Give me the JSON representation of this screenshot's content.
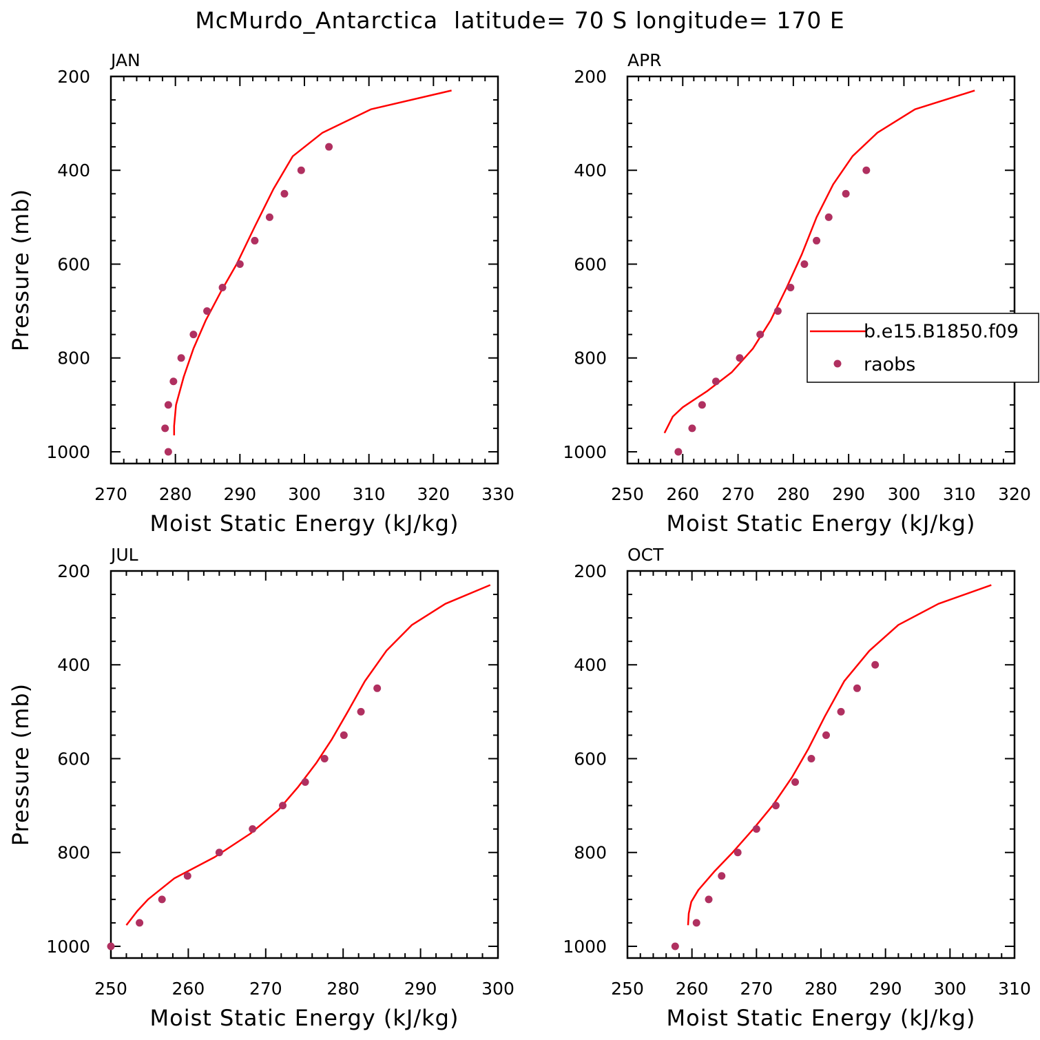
{
  "page": {
    "title": "McMurdo_Antarctica  latitude= 70 S longitude= 170 E"
  },
  "colors": {
    "model": "#ff0000",
    "obs": "#b03060",
    "axis": "#000000"
  },
  "legend": {
    "panel": "APR",
    "placement": "right-middle",
    "entries": [
      {
        "label": "b.e15.B1850.f09",
        "kind": "line"
      },
      {
        "label": "raobs",
        "kind": "marker"
      }
    ]
  },
  "chart_data": [
    {
      "panel": "JAN",
      "type": "line",
      "xlabel": "Moist Static Energy (kJ/kg)",
      "ylabel": "Pressure (mb)",
      "xlim": [
        270,
        330
      ],
      "xticks": [
        270,
        280,
        290,
        300,
        310,
        320,
        330
      ],
      "ylim": [
        1025,
        200
      ],
      "yticks": [
        200,
        400,
        600,
        800,
        1000
      ],
      "y_inverted": true,
      "series": [
        {
          "name": "b.e15.B1850.f09",
          "kind": "line",
          "x": [
            322.8,
            310.3,
            302.8,
            298.2,
            295.2,
            292.3,
            289.5,
            287.0,
            284.7,
            282.8,
            281.3,
            280.1,
            279.8,
            279.8
          ],
          "y": [
            230,
            270,
            320,
            370,
            440,
            520,
            600,
            660,
            720,
            780,
            840,
            900,
            945,
            965
          ]
        },
        {
          "name": "raobs",
          "kind": "scatter",
          "x": [
            303.8,
            299.5,
            296.9,
            294.6,
            292.3,
            290.0,
            287.3,
            284.9,
            282.8,
            280.9,
            279.7,
            278.9,
            278.4,
            278.9
          ],
          "y": [
            350,
            400,
            450,
            500,
            550,
            600,
            650,
            700,
            750,
            800,
            850,
            900,
            950,
            1000
          ]
        }
      ]
    },
    {
      "panel": "APR",
      "type": "line",
      "xlabel": "Moist Static Energy (kJ/kg)",
      "ylabel": "",
      "xlim": [
        250,
        320
      ],
      "xticks": [
        250,
        260,
        270,
        280,
        290,
        300,
        310,
        320
      ],
      "ylim": [
        1025,
        200
      ],
      "yticks": [
        200,
        400,
        600,
        800,
        1000
      ],
      "y_inverted": true,
      "series": [
        {
          "name": "b.e15.B1850.f09",
          "kind": "line",
          "x": [
            312.8,
            302.0,
            295.2,
            290.7,
            287.2,
            284.2,
            281.5,
            278.8,
            275.9,
            272.7,
            268.9,
            264.5,
            260.0,
            258.2,
            256.7
          ],
          "y": [
            230,
            270,
            320,
            370,
            430,
            500,
            580,
            650,
            720,
            780,
            830,
            870,
            905,
            925,
            960
          ]
        },
        {
          "name": "raobs",
          "kind": "scatter",
          "x": [
            293.2,
            289.5,
            286.4,
            284.2,
            282.0,
            279.5,
            277.2,
            274.0,
            270.3,
            266.0,
            263.5,
            261.7,
            259.2
          ],
          "y": [
            400,
            450,
            500,
            550,
            600,
            650,
            700,
            750,
            800,
            850,
            900,
            950,
            1000
          ]
        }
      ]
    },
    {
      "panel": "JUL",
      "type": "line",
      "xlabel": "Moist Static Energy (kJ/kg)",
      "ylabel": "Pressure (mb)",
      "xlim": [
        250,
        300
      ],
      "xticks": [
        250,
        260,
        270,
        280,
        290,
        300
      ],
      "ylim": [
        1025,
        200
      ],
      "yticks": [
        200,
        400,
        600,
        800,
        1000
      ],
      "y_inverted": true,
      "series": [
        {
          "name": "b.e15.B1850.f09",
          "kind": "line",
          "x": [
            299.0,
            293.2,
            288.9,
            285.6,
            282.8,
            280.6,
            278.5,
            276.5,
            274.2,
            271.6,
            268.0,
            263.4,
            258.2,
            254.8,
            253.4,
            252.0
          ],
          "y": [
            230,
            270,
            315,
            370,
            435,
            500,
            560,
            610,
            660,
            710,
            760,
            810,
            855,
            900,
            925,
            955
          ]
        },
        {
          "name": "raobs",
          "kind": "scatter",
          "x": [
            284.4,
            282.3,
            280.1,
            277.6,
            275.1,
            272.2,
            268.3,
            264.0,
            259.9,
            256.6,
            253.7,
            250.0
          ],
          "y": [
            450,
            500,
            550,
            600,
            650,
            700,
            750,
            800,
            850,
            900,
            950,
            1000
          ]
        }
      ]
    },
    {
      "panel": "OCT",
      "type": "line",
      "xlabel": "Moist Static Energy (kJ/kg)",
      "ylabel": "",
      "xlim": [
        250,
        310
      ],
      "xticks": [
        250,
        260,
        270,
        280,
        290,
        300,
        310
      ],
      "ylim": [
        1025,
        200
      ],
      "yticks": [
        200,
        400,
        600,
        800,
        1000
      ],
      "y_inverted": true,
      "series": [
        {
          "name": "b.e15.B1850.f09",
          "kind": "line",
          "x": [
            306.4,
            298.2,
            292.0,
            287.5,
            283.6,
            280.6,
            278.0,
            275.5,
            272.5,
            269.5,
            266.3,
            263.5,
            261.0,
            259.9,
            259.5,
            259.4
          ],
          "y": [
            230,
            270,
            315,
            370,
            435,
            510,
            580,
            640,
            700,
            750,
            800,
            840,
            880,
            905,
            930,
            955
          ]
        },
        {
          "name": "raobs",
          "kind": "scatter",
          "x": [
            288.4,
            285.6,
            283.1,
            280.8,
            278.5,
            276.0,
            273.0,
            270.0,
            267.1,
            264.6,
            262.6,
            260.7,
            257.4
          ],
          "y": [
            400,
            450,
            500,
            550,
            600,
            650,
            700,
            750,
            800,
            850,
            900,
            950,
            1000
          ]
        }
      ]
    }
  ]
}
